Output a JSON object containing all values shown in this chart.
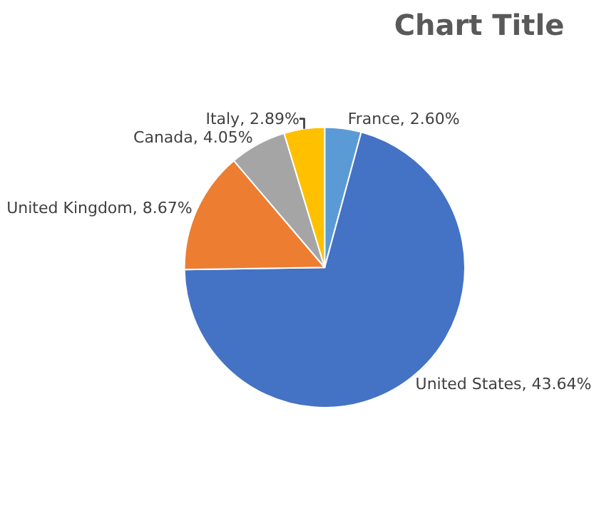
{
  "chart_data": {
    "type": "pie",
    "title": "Chart Title",
    "categories": [
      "France",
      "United States",
      "United Kingdom",
      "Canada",
      "Italy"
    ],
    "values": [
      2.6,
      43.64,
      8.67,
      4.05,
      2.89
    ],
    "value_labels": [
      "2.60%",
      "43.64%",
      "8.67%",
      "4.05%",
      "2.89%"
    ],
    "colors": [
      "#5b9bd5",
      "#4472c4",
      "#ed7d31",
      "#a5a5a5",
      "#ffc000"
    ],
    "legend": false
  }
}
